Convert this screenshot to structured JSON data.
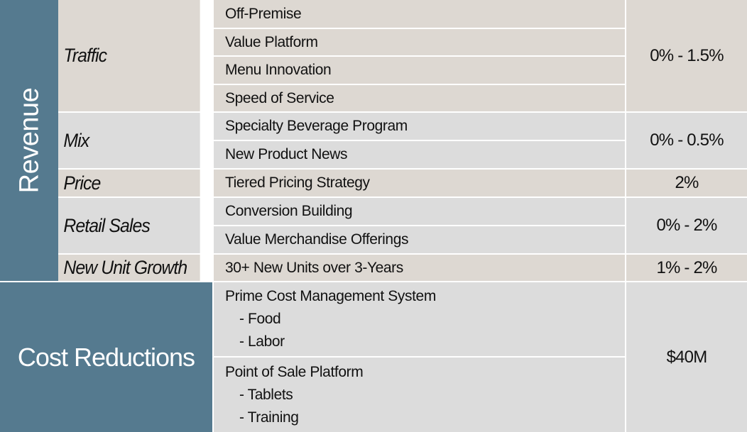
{
  "revenue": {
    "label": "Revenue",
    "rows": [
      {
        "category": "Traffic",
        "items": [
          "Off-Premise",
          "Value Platform",
          "Menu Innovation",
          "Speed of Service"
        ],
        "value": "0% - 1.5%"
      },
      {
        "category": "Mix",
        "items": [
          "Specialty Beverage Program",
          "New Product News"
        ],
        "value": "0% - 0.5%"
      },
      {
        "category": "Price",
        "items": [
          "Tiered Pricing Strategy"
        ],
        "value": "2%"
      },
      {
        "category": "Retail Sales",
        "items": [
          "Conversion Building",
          "Value Merchandise Offerings"
        ],
        "value": "0% - 2%"
      },
      {
        "category": "New Unit Growth",
        "items": [
          "30+ New Units over 3-Years"
        ],
        "value": "1% - 2%"
      }
    ]
  },
  "cost": {
    "label": "Cost Reductions",
    "items": [
      {
        "title": "Prime Cost Management System",
        "subs": [
          "- Food",
          "- Labor"
        ]
      },
      {
        "title": "Point of Sale Platform",
        "subs": [
          "- Tablets",
          "- Training"
        ]
      }
    ],
    "value": "$40M"
  },
  "colors": {
    "section_blue": "#557a8f",
    "row_tan": "#ddd8d2",
    "row_grey": "#dcdcdc"
  }
}
